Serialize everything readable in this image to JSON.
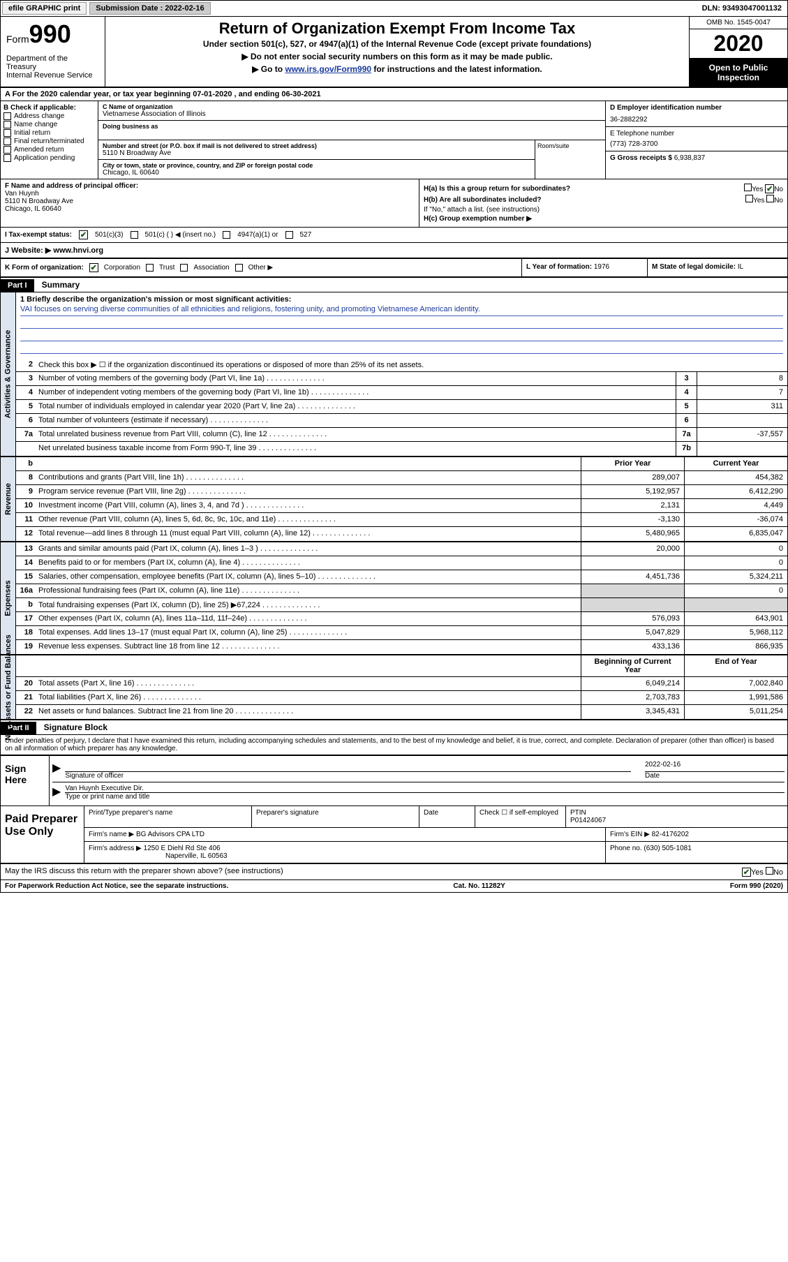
{
  "topbar": {
    "efile": "efile GRAPHIC print",
    "subdate_label": "Submission Date : 2022-02-16",
    "dln": "DLN: 93493047001132"
  },
  "header": {
    "form_prefix": "Form",
    "form_number": "990",
    "dept": "Department of the Treasury\nInternal Revenue Service",
    "title": "Return of Organization Exempt From Income Tax",
    "subtitle": "Under section 501(c), 527, or 4947(a)(1) of the Internal Revenue Code (except private foundations)",
    "instr1": "▶ Do not enter social security numbers on this form as it may be made public.",
    "instr2_prefix": "▶ Go to ",
    "instr2_link": "www.irs.gov/Form990",
    "instr2_suffix": " for instructions and the latest information.",
    "omb": "OMB No. 1545-0047",
    "year": "2020",
    "inspection": "Open to Public Inspection"
  },
  "section_a": "A For the 2020 calendar year, or tax year beginning 07-01-2020    , and ending 06-30-2021",
  "col_b": {
    "header": "B Check if applicable:",
    "items": [
      "Address change",
      "Name change",
      "Initial return",
      "Final return/terminated",
      "Amended return",
      "Application pending"
    ]
  },
  "col_c": {
    "name_label": "C Name of organization",
    "name": "Vietnamese Association of Illinois",
    "dba_label": "Doing business as",
    "street_label": "Number and street (or P.O. box if mail is not delivered to street address)",
    "street": "5110 N Broadway Ave",
    "room_label": "Room/suite",
    "city_label": "City or town, state or province, country, and ZIP or foreign postal code",
    "city": "Chicago, IL  60640"
  },
  "col_d": {
    "ein_label": "D Employer identification number",
    "ein": "36-2882292",
    "phone_label": "E Telephone number",
    "phone": "(773) 728-3700",
    "gross_label": "G Gross receipts $ ",
    "gross": "6,938,837"
  },
  "officer": {
    "label": "F  Name and address of principal officer:",
    "name": "Van Huynh",
    "addr1": "5110 N Broadway Ave",
    "addr2": "Chicago, IL  60640"
  },
  "h": {
    "a_label": "H(a)  Is this a group return for subordinates?",
    "b_label": "H(b)  Are all subordinates included?",
    "b_note": "If \"No,\" attach a list. (see instructions)",
    "c_label": "H(c)  Group exemption number ▶"
  },
  "tax_status": {
    "label": "I   Tax-exempt status:",
    "opts": [
      "501(c)(3)",
      "501(c) (  ) ◀ (insert no.)",
      "4947(a)(1) or",
      "527"
    ]
  },
  "website": {
    "label": "J   Website: ▶  ",
    "value": "www.hnvi.org"
  },
  "org_form": {
    "label": "K Form of organization:",
    "opts": [
      "Corporation",
      "Trust",
      "Association",
      "Other ▶"
    ],
    "year_label": "L Year of formation: ",
    "year": "1976",
    "state_label": "M State of legal domicile: ",
    "state": "IL"
  },
  "part1": {
    "header": "Part I",
    "title": "Summary"
  },
  "mission": {
    "label": "1   Briefly describe the organization's mission or most significant activities:",
    "text": "VAI focuses on serving diverse communities of all ethnicities and religions, fostering unity, and promoting Vietnamese American identity."
  },
  "governance": {
    "label": "Activities & Governance",
    "line2": "Check this box ▶ ☐  if the organization discontinued its operations or disposed of more than 25% of its net assets.",
    "lines": [
      {
        "n": "3",
        "d": "Number of voting members of the governing body (Part VI, line 1a)",
        "c": "3",
        "v": "8"
      },
      {
        "n": "4",
        "d": "Number of independent voting members of the governing body (Part VI, line 1b)",
        "c": "4",
        "v": "7"
      },
      {
        "n": "5",
        "d": "Total number of individuals employed in calendar year 2020 (Part V, line 2a)",
        "c": "5",
        "v": "311"
      },
      {
        "n": "6",
        "d": "Total number of volunteers (estimate if necessary)",
        "c": "6",
        "v": ""
      },
      {
        "n": "7a",
        "d": "Total unrelated business revenue from Part VIII, column (C), line 12",
        "c": "7a",
        "v": "-37,557"
      },
      {
        "n": "",
        "d": "Net unrelated business taxable income from Form 990-T, line 39",
        "c": "7b",
        "v": ""
      }
    ]
  },
  "revenue": {
    "label": "Revenue",
    "header": {
      "b": "b",
      "py": "Prior Year",
      "cy": "Current Year"
    },
    "lines": [
      {
        "n": "8",
        "d": "Contributions and grants (Part VIII, line 1h)",
        "py": "289,007",
        "cy": "454,382"
      },
      {
        "n": "9",
        "d": "Program service revenue (Part VIII, line 2g)",
        "py": "5,192,957",
        "cy": "6,412,290"
      },
      {
        "n": "10",
        "d": "Investment income (Part VIII, column (A), lines 3, 4, and 7d )",
        "py": "2,131",
        "cy": "4,449"
      },
      {
        "n": "11",
        "d": "Other revenue (Part VIII, column (A), lines 5, 6d, 8c, 9c, 10c, and 11e)",
        "py": "-3,130",
        "cy": "-36,074"
      },
      {
        "n": "12",
        "d": "Total revenue—add lines 8 through 11 (must equal Part VIII, column (A), line 12)",
        "py": "5,480,965",
        "cy": "6,835,047"
      }
    ]
  },
  "expenses": {
    "label": "Expenses",
    "lines": [
      {
        "n": "13",
        "d": "Grants and similar amounts paid (Part IX, column (A), lines 1–3 )",
        "py": "20,000",
        "cy": "0"
      },
      {
        "n": "14",
        "d": "Benefits paid to or for members (Part IX, column (A), line 4)",
        "py": "",
        "cy": "0"
      },
      {
        "n": "15",
        "d": "Salaries, other compensation, employee benefits (Part IX, column (A), lines 5–10)",
        "py": "4,451,736",
        "cy": "5,324,211"
      },
      {
        "n": "16a",
        "d": "Professional fundraising fees (Part IX, column (A), line 11e)",
        "py": "",
        "cy": "0",
        "grey_py": true
      },
      {
        "n": "b",
        "d": "Total fundraising expenses (Part IX, column (D), line 25) ▶67,224",
        "py": "",
        "cy": "",
        "grey_both": true
      },
      {
        "n": "17",
        "d": "Other expenses (Part IX, column (A), lines 11a–11d, 11f–24e)",
        "py": "576,093",
        "cy": "643,901"
      },
      {
        "n": "18",
        "d": "Total expenses. Add lines 13–17 (must equal Part IX, column (A), line 25)",
        "py": "5,047,829",
        "cy": "5,968,112"
      },
      {
        "n": "19",
        "d": "Revenue less expenses. Subtract line 18 from line 12",
        "py": "433,136",
        "cy": "866,935"
      }
    ]
  },
  "netassets": {
    "label": "Net Assets or Fund Balances",
    "header": {
      "py": "Beginning of Current Year",
      "cy": "End of Year"
    },
    "lines": [
      {
        "n": "20",
        "d": "Total assets (Part X, line 16)",
        "py": "6,049,214",
        "cy": "7,002,840"
      },
      {
        "n": "21",
        "d": "Total liabilities (Part X, line 26)",
        "py": "2,703,783",
        "cy": "1,991,586"
      },
      {
        "n": "22",
        "d": "Net assets or fund balances. Subtract line 21 from line 20",
        "py": "3,345,431",
        "cy": "5,011,254"
      }
    ]
  },
  "part2": {
    "header": "Part II",
    "title": "Signature Block",
    "declaration": "Under penalties of perjury, I declare that I have examined this return, including accompanying schedules and statements, and to the best of my knowledge and belief, it is true, correct, and complete. Declaration of preparer (other than officer) is based on all information of which preparer has any knowledge."
  },
  "sign": {
    "label": "Sign Here",
    "sig_label": "Signature of officer",
    "date_label": "Date",
    "date": "2022-02-16",
    "name": "Van Huynh  Executive Dir.",
    "name_label": "Type or print name and title"
  },
  "preparer": {
    "label": "Paid Preparer Use Only",
    "headers": [
      "Print/Type preparer's name",
      "Preparer's signature",
      "Date"
    ],
    "check_label": "Check ☐ if self-employed",
    "ptin_label": "PTIN",
    "ptin": "P01424067",
    "firm_label": "Firm's name     ▶ ",
    "firm": "BG Advisors CPA LTD",
    "ein_label": "Firm's EIN ▶ ",
    "ein": "82-4176202",
    "addr_label": "Firm's address ▶ ",
    "addr1": "1250 E Diehl Rd Ste 406",
    "addr2": "Naperville, IL  60563",
    "phone_label": "Phone no. ",
    "phone": "(630) 505-1081"
  },
  "discuss": "May the IRS discuss this return with the preparer shown above? (see instructions)",
  "footer": {
    "left": "For Paperwork Reduction Act Notice, see the separate instructions.",
    "mid": "Cat. No. 11282Y",
    "right": "Form 990 (2020)"
  }
}
